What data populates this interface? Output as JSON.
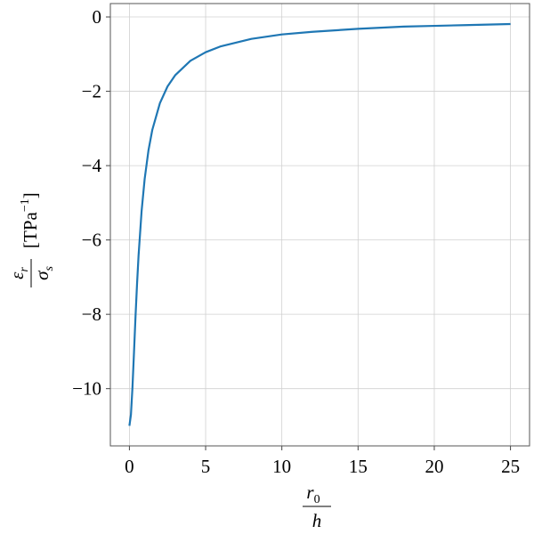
{
  "chart_data": {
    "type": "line",
    "x": [
      0,
      0.1,
      0.2,
      0.3,
      0.4,
      0.5,
      0.6,
      0.8,
      1,
      1.25,
      1.5,
      2,
      2.5,
      3,
      4,
      5,
      6,
      8,
      10,
      12,
      15,
      18,
      20,
      22,
      25
    ],
    "series": [
      {
        "color": "#1f77b4",
        "values": [
          -11.0,
          -10.7,
          -9.97,
          -9.03,
          -8.06,
          -7.19,
          -6.42,
          -5.22,
          -4.36,
          -3.59,
          -3.04,
          -2.32,
          -1.87,
          -1.57,
          -1.18,
          -0.95,
          -0.79,
          -0.59,
          -0.47,
          -0.4,
          -0.32,
          -0.26,
          -0.24,
          -0.22,
          -0.19
        ]
      }
    ],
    "xlim": [
      -1.25,
      26.25
    ],
    "ylim": [
      -11.54,
      0.36
    ],
    "xticks": [
      0,
      5,
      10,
      15,
      20,
      25
    ],
    "yticks": [
      {
        "value": -10,
        "label": "−10"
      },
      {
        "value": -8,
        "label": "−8"
      },
      {
        "value": -6,
        "label": "−6"
      },
      {
        "value": -4,
        "label": "−4"
      },
      {
        "value": -2,
        "label": "−2"
      },
      0
    ],
    "grid": true,
    "xlabel": {
      "numerator": "r",
      "numerator_sub": "0",
      "denominator": "h"
    },
    "ylabel": {
      "numerator": "ε",
      "numerator_sub": "r",
      "denominator": "σ",
      "denominator_sub": "s",
      "unit": "[TPa",
      "unit_sup": "−1",
      "unit_end": "]"
    }
  }
}
